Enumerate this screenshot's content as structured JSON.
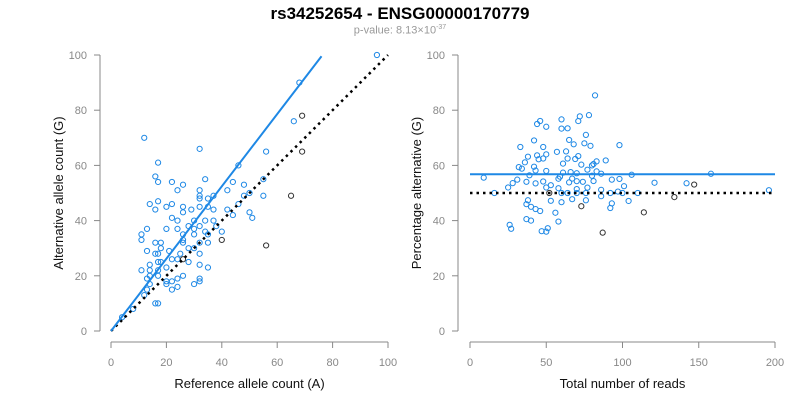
{
  "title": "rs34252654 - ENSG00000170779",
  "subtitle": {
    "prefix": "p-value: 8.13×10",
    "exponent": "-37"
  },
  "colors": {
    "blue": "#1e88e5",
    "dark": "#333333",
    "axis": "#888888",
    "ref_line": "#000000"
  },
  "chart_data": [
    {
      "type": "scatter",
      "xlabel": "Reference allele count (A)",
      "ylabel": "Alternative allele count (G)",
      "xlim": [
        0,
        100
      ],
      "ylim": [
        0,
        100
      ],
      "xticks": [
        "0",
        "20",
        "40",
        "60",
        "80",
        "100"
      ],
      "yticks": [
        "0",
        "20",
        "40",
        "60",
        "80",
        "100"
      ],
      "grid": false,
      "fit_line": {
        "slope": 1.31,
        "intercept": 0,
        "x_range": [
          0,
          76
        ],
        "color": "blue"
      },
      "reference_line": {
        "slope": 1,
        "intercept": 0,
        "x_range": [
          0,
          100
        ],
        "style": "dotted"
      },
      "series": [
        {
          "name": "blue",
          "points": [
            [
              12,
              70
            ],
            [
              32,
              66
            ],
            [
              66,
              76
            ],
            [
              56,
              65
            ],
            [
              17,
              61
            ],
            [
              46,
              60
            ],
            [
              16,
              56
            ],
            [
              17,
              54
            ],
            [
              22,
              54
            ],
            [
              26,
              53
            ],
            [
              34,
              55
            ],
            [
              44,
              54
            ],
            [
              24,
              51
            ],
            [
              32,
              51
            ],
            [
              42,
              51
            ],
            [
              48,
              53
            ],
            [
              55,
              55
            ],
            [
              50,
              50
            ],
            [
              55,
              49
            ],
            [
              48,
              49
            ],
            [
              37,
              49
            ],
            [
              32,
              49
            ],
            [
              32,
              48
            ],
            [
              35,
              48
            ],
            [
              14,
              46
            ],
            [
              17,
              47
            ],
            [
              22,
              46
            ],
            [
              16,
              44
            ],
            [
              20,
              45
            ],
            [
              26,
              45
            ],
            [
              26,
              43
            ],
            [
              29,
              44
            ],
            [
              32,
              45
            ],
            [
              35,
              45
            ],
            [
              37,
              44
            ],
            [
              42,
              44
            ],
            [
              44,
              42
            ],
            [
              50,
              43
            ],
            [
              51,
              41
            ],
            [
              22,
              41
            ],
            [
              24,
              40
            ],
            [
              30,
              40
            ],
            [
              34,
              40
            ],
            [
              37,
              40
            ],
            [
              13,
              37
            ],
            [
              20,
              37
            ],
            [
              24,
              37
            ],
            [
              28,
              38
            ],
            [
              30,
              37
            ],
            [
              32,
              38
            ],
            [
              38,
              38
            ],
            [
              40,
              36
            ],
            [
              26,
              35
            ],
            [
              11,
              35
            ],
            [
              11,
              33
            ],
            [
              26,
              33
            ],
            [
              30,
              35
            ],
            [
              34,
              36
            ],
            [
              35,
              35
            ],
            [
              16,
              32
            ],
            [
              18,
              32
            ],
            [
              18,
              30
            ],
            [
              26,
              32
            ],
            [
              32,
              32
            ],
            [
              35,
              32
            ],
            [
              13,
              29
            ],
            [
              21,
              29
            ],
            [
              28,
              30
            ],
            [
              30,
              30
            ],
            [
              16,
              28
            ],
            [
              17,
              28
            ],
            [
              22,
              26
            ],
            [
              25,
              28
            ],
            [
              32,
              28
            ],
            [
              24,
              26
            ],
            [
              28,
              25
            ],
            [
              32,
              24
            ],
            [
              35,
              23
            ],
            [
              14,
              24
            ],
            [
              17,
              25
            ],
            [
              18,
              25
            ],
            [
              11,
              22
            ],
            [
              14,
              22
            ],
            [
              17,
              22
            ],
            [
              20,
              23
            ],
            [
              14,
              20
            ],
            [
              17,
              20
            ],
            [
              26,
              20
            ],
            [
              13,
              19
            ],
            [
              20,
              18
            ],
            [
              24,
              19
            ],
            [
              22,
              18
            ],
            [
              32,
              19
            ],
            [
              32,
              18
            ],
            [
              14,
              17
            ],
            [
              20,
              17
            ],
            [
              24,
              16
            ],
            [
              30,
              17
            ],
            [
              22,
              15
            ],
            [
              13,
              15
            ],
            [
              12,
              13
            ],
            [
              16,
              10
            ],
            [
              17,
              10
            ],
            [
              96,
              100
            ],
            [
              68,
              90
            ],
            [
              4,
              5
            ],
            [
              8,
              8
            ],
            [
              46,
              46
            ]
          ]
        },
        {
          "name": "dark",
          "points": [
            [
              56,
              31
            ],
            [
              69,
              78
            ],
            [
              69,
              65
            ],
            [
              65,
              49
            ],
            [
              40,
              33
            ],
            [
              26,
              26
            ]
          ]
        }
      ]
    },
    {
      "type": "scatter",
      "xlabel": "Total number of reads",
      "ylabel": "Percentage alternative (G)",
      "xlim": [
        0,
        200
      ],
      "ylim": [
        0,
        100
      ],
      "xticks": [
        "0",
        "50",
        "100",
        "150",
        "200"
      ],
      "yticks": [
        "0",
        "20",
        "40",
        "60",
        "80",
        "100"
      ],
      "grid": false,
      "derived": "x = reference + alternative, y = 100 * alternative / total (from first chart)",
      "fit_line": {
        "y": 56.8,
        "x_range": [
          0,
          200
        ],
        "color": "blue"
      },
      "reference_line": {
        "y": 50,
        "x_range": [
          0,
          200
        ],
        "style": "dotted"
      }
    }
  ]
}
